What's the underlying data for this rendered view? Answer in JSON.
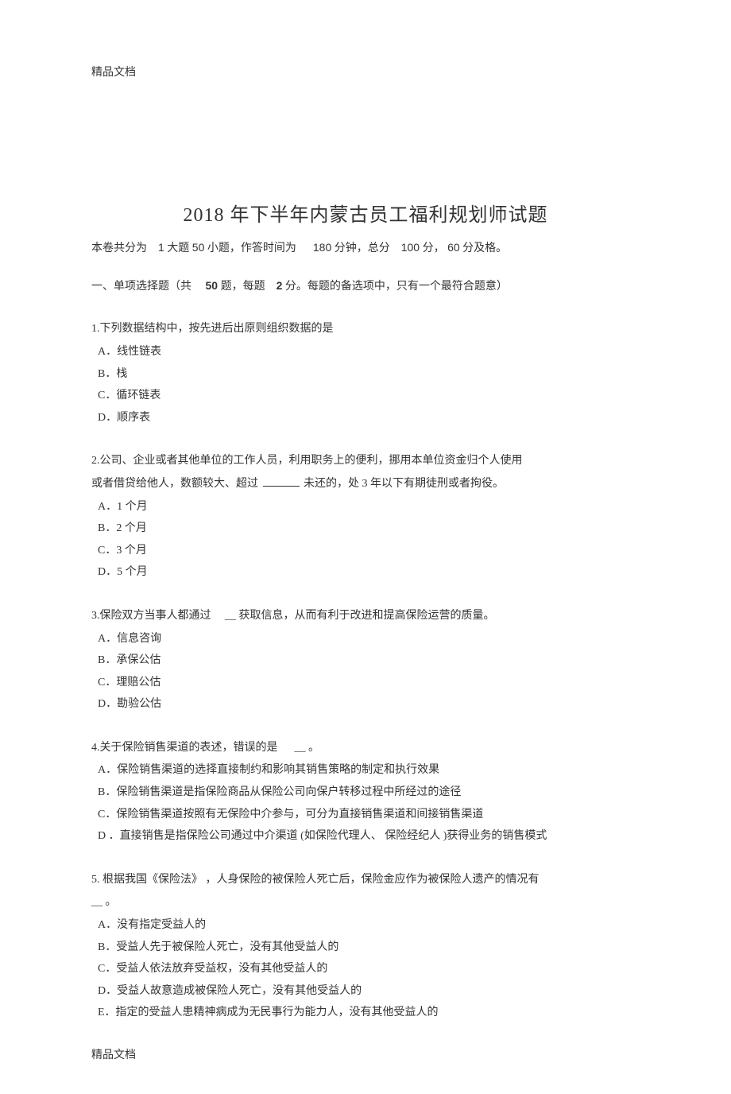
{
  "doc_header": "精品文档",
  "doc_footer": "精品文档",
  "title": "2018  年下半年内蒙古员工福利规划师试题",
  "meta": {
    "parts_prefix": "本卷共分为",
    "parts_count": "1",
    "parts_label": "大题",
    "subcount": "50",
    "sub_label": "小题，作答时间为",
    "time_min": "180",
    "time_suffix": "分钟，总分",
    "total_score": "100",
    "total_suffix": "分，",
    "pass_score": "60",
    "pass_suffix": "分及格。"
  },
  "section": {
    "prefix": "一、单项选择题（共",
    "count": "50",
    "mid": "题，每题",
    "pts": "2",
    "suffix": "分。每题的备选项中，只有一个最符合题意）"
  },
  "q1": {
    "stem": "1.下列数据结构中，按先进后出原则组织数据的是",
    "A": "A．线性链表",
    "B": "B．栈",
    "C": "C．循环链表",
    "D": "D．顺序表"
  },
  "q2": {
    "stem1": "2.公司、企业或者其他单位的工作人员，利用职务上的便利，挪用本单位资金归个人使用",
    "stem2a": "或者借贷给他人，数额较大、超过 ",
    "stem2b": " 未还的，处 3 年以下有期徒刑或者拘役。",
    "A": "A．1 个月",
    "B": "B．2 个月",
    "C": "C．3 个月",
    "D": "D．5 个月"
  },
  "q3": {
    "stem_a": "3.保险双方当事人都通过",
    "stem_blank": "__",
    "stem_b": "获取信息，从而有利于改进和提高保险运营的质量。",
    "A": "A．信息咨询",
    "B": "B．承保公估",
    "C": "C．理赔公估",
    "D": "D．勘验公估"
  },
  "q4": {
    "stem_a": "4.关于保险销售渠道的表述，错误的是",
    "stem_blank": "__",
    "stem_b": "。",
    "A": "A．保险销售渠道的选择直接制约和影响其销售策略的制定和执行效果",
    "B": "B．保险销售渠道是指保险商品从保险公司向保户转移过程中所经过的途径",
    "C": "C．保险销售渠道按照有无保险中介参与，可分为直接销售渠道和间接销售渠道",
    "D": "D ．直接销售是指保险公司通过中介渠道     (如保险代理人、 保险经纪人 )获得业务的销售模式"
  },
  "q5": {
    "stem_a": "5. 根据我国《保险法》 ，人身保险的被保险人死亡后，保险金应作为被保险人遗产的情况有",
    "stem_blank": "__",
    "stem_b": "。",
    "A": "A．没有指定受益人的",
    "B": "B．受益人先于被保险人死亡，没有其他受益人的",
    "C": "C．受益人依法放弃受益权，没有其他受益人的",
    "D": "D．受益人故意造成被保险人死亡，没有其他受益人的",
    "E": "E．指定的受益人患精神病成为无民事行为能力人，没有其他受益人的"
  }
}
